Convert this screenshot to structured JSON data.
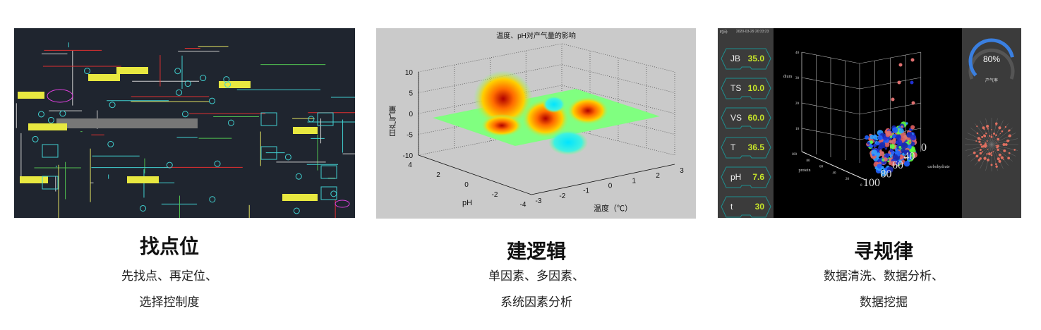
{
  "sections": [
    {
      "title": "找点位",
      "lines": [
        "先找点、再定位、",
        "选择控制度"
      ]
    },
    {
      "title": "建逻辑",
      "lines": [
        "单因素、多因素、",
        "系统因素分析"
      ]
    },
    {
      "title": "寻规律",
      "lines": [
        "数据清洗、数据分析、",
        "数据挖掘"
      ]
    }
  ],
  "surface_chart": {
    "title": "温度、pH对产气量的影响",
    "zlabel": "日产气量",
    "xlabel": "温度（℃）",
    "ylabel": "pH",
    "z_ticks": [
      "10",
      "5",
      "0",
      "-5",
      "-10"
    ],
    "y_ticks": [
      "4",
      "2",
      "0",
      "-2",
      "-4"
    ],
    "x_ticks": [
      "-3",
      "-2",
      "-1",
      "0",
      "1",
      "2",
      "3"
    ],
    "colormap": [
      "#00e5ff",
      "#7fff7f",
      "#ffff00",
      "#ff8000",
      "#b00000"
    ]
  },
  "dashboard": {
    "time_label": "时间:",
    "time_value": "2020-03-29 20:33:23",
    "params": [
      {
        "key": "JB",
        "value": "35.0"
      },
      {
        "key": "TS",
        "value": "10.0"
      },
      {
        "key": "VS",
        "value": "60.0"
      },
      {
        "key": "T",
        "value": "36.5"
      },
      {
        "key": "pH",
        "value": "7.6"
      },
      {
        "key": "t",
        "value": "30"
      }
    ],
    "scatter": {
      "zlabel": "dium",
      "ylabel": "protein",
      "xlabel": "carbohydrate",
      "z_ticks": [
        "40",
        "30",
        "20",
        "10"
      ],
      "protein_ticks": [
        "100",
        "80",
        "60",
        "40",
        "20",
        "0"
      ],
      "carb_ticks": [
        "0",
        "40",
        "60",
        "80",
        "100"
      ]
    },
    "gauge": {
      "value_text": "80%",
      "percent": 80,
      "label": "产气率",
      "color": "#3a7fe0"
    }
  }
}
